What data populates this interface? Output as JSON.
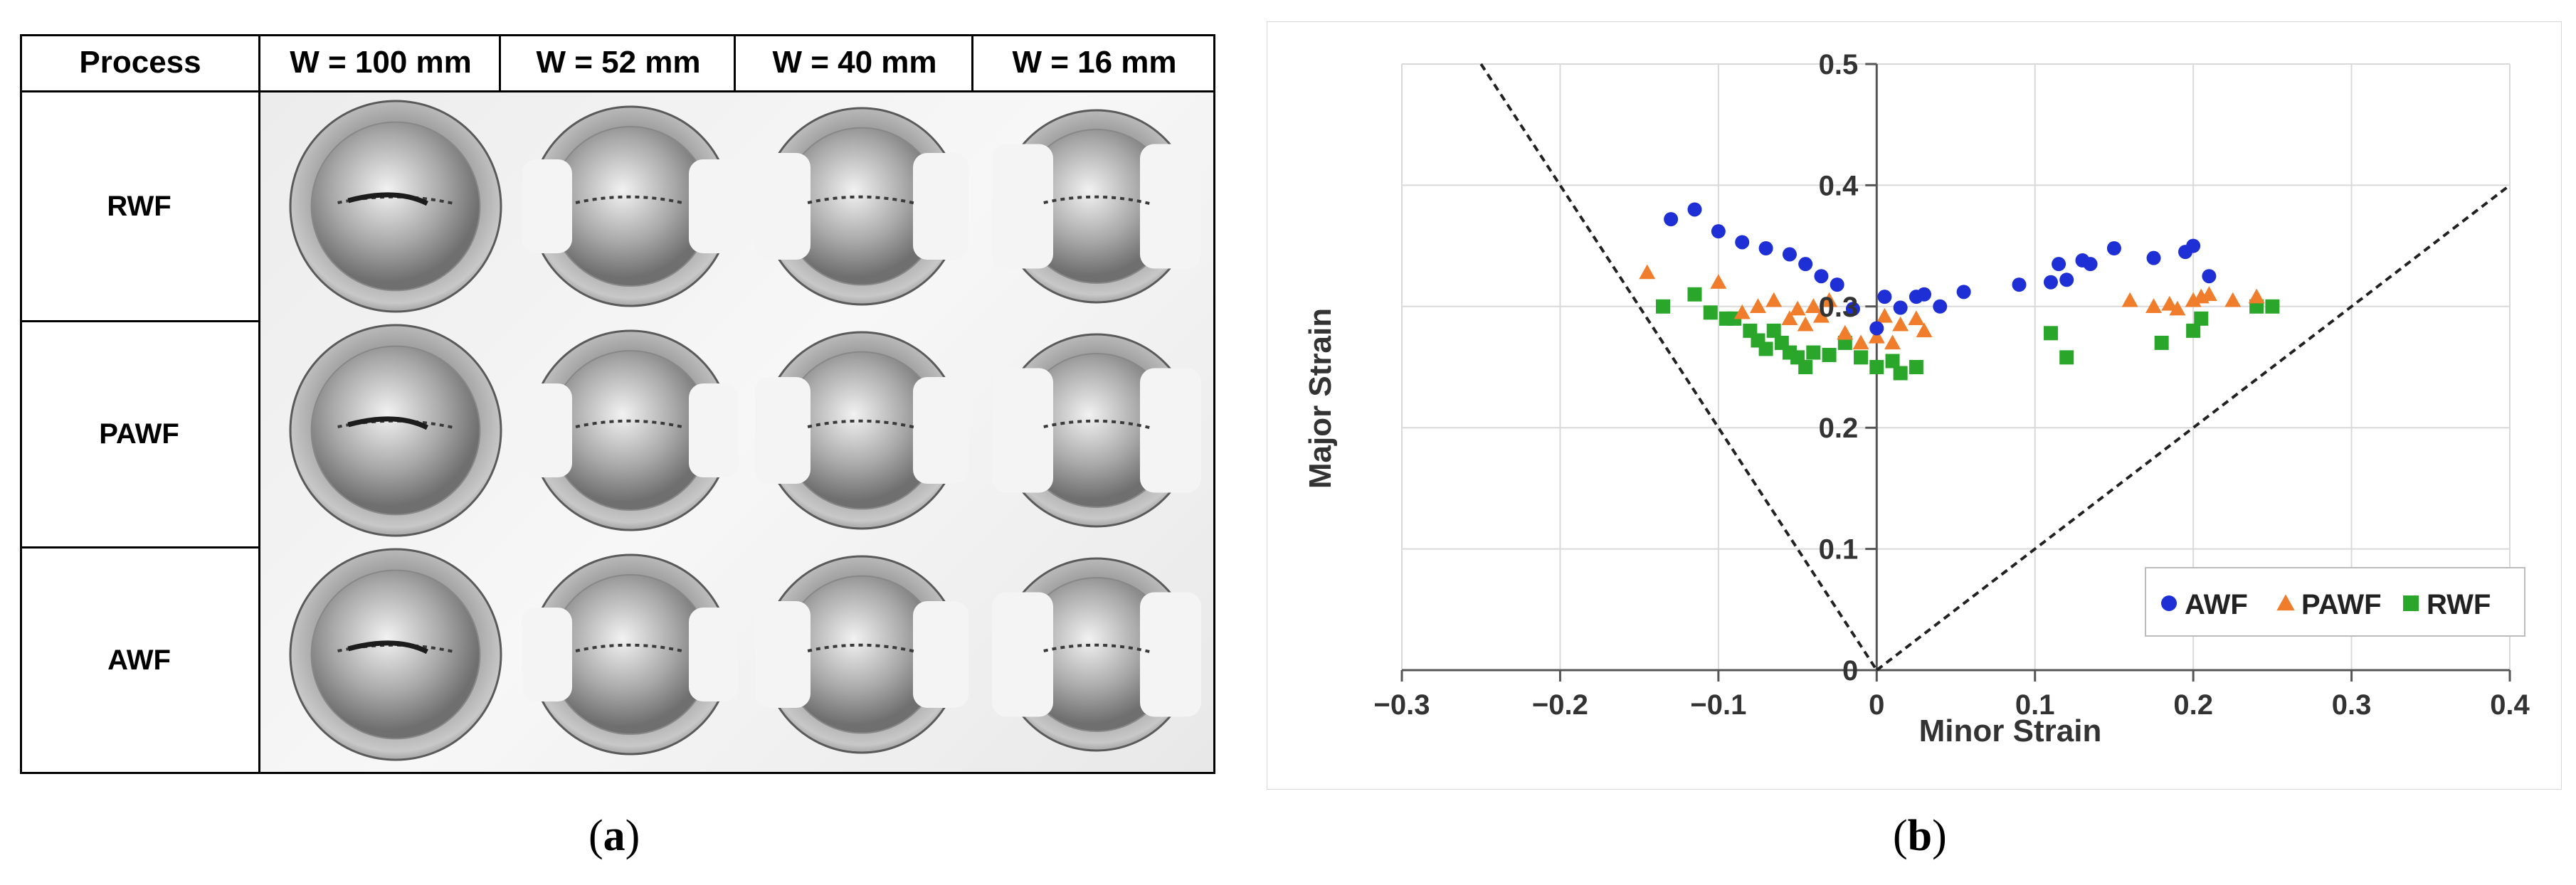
{
  "panel_a": {
    "caption_letter": "a",
    "header": {
      "process": "Process",
      "columns": [
        "W = 100 mm",
        "W = 52 mm",
        "W = 40 mm",
        "W = 16 mm"
      ]
    },
    "rows": [
      "RWF",
      "PAWF",
      "AWF"
    ]
  },
  "panel_b": {
    "caption_letter": "b"
  },
  "chart_data": {
    "type": "scatter",
    "title": "",
    "xlabel": "Minor Strain",
    "ylabel": "Major Strain",
    "xlim": [
      -0.3,
      0.4
    ],
    "ylim": [
      0,
      0.5
    ],
    "xticks": [
      "−0.3",
      "−0.2",
      "−0.1",
      "0",
      "0.1",
      "0.2",
      "0.3",
      "0.4"
    ],
    "xtick_values": [
      -0.3,
      -0.2,
      -0.1,
      0,
      0.1,
      0.2,
      0.3,
      0.4
    ],
    "yticks": [
      "0",
      "0.1",
      "0.2",
      "0.3",
      "0.4",
      "0.5"
    ],
    "ytick_values": [
      0,
      0.1,
      0.2,
      0.3,
      0.4,
      0.5
    ],
    "grid": true,
    "legend_position": "bottom-right",
    "reference_lines": [
      {
        "name": "left-limit-line",
        "x": [
          -0.25,
          0
        ],
        "y": [
          0.5,
          0
        ],
        "style": "dashed"
      },
      {
        "name": "right-limit-line",
        "x": [
          0,
          0.4
        ],
        "y": [
          0,
          0.4
        ],
        "style": "dashed"
      }
    ],
    "series": [
      {
        "name": "AWF",
        "marker": "circle",
        "color": "#1f2fd6",
        "x": [
          -0.13,
          -0.115,
          -0.1,
          -0.085,
          -0.07,
          -0.055,
          -0.045,
          -0.035,
          -0.025,
          -0.015,
          0.0,
          0.005,
          0.015,
          0.025,
          0.03,
          0.04,
          0.055,
          0.09,
          0.11,
          0.115,
          0.12,
          0.13,
          0.135,
          0.15,
          0.175,
          0.195,
          0.2,
          0.21
        ],
        "y": [
          0.372,
          0.38,
          0.362,
          0.353,
          0.348,
          0.343,
          0.335,
          0.325,
          0.318,
          0.298,
          0.282,
          0.308,
          0.299,
          0.308,
          0.31,
          0.3,
          0.312,
          0.318,
          0.32,
          0.335,
          0.322,
          0.338,
          0.335,
          0.348,
          0.34,
          0.345,
          0.35,
          0.325
        ]
      },
      {
        "name": "PAWF",
        "marker": "triangle",
        "color": "#f07d2b",
        "x": [
          -0.145,
          -0.1,
          -0.085,
          -0.075,
          -0.065,
          -0.055,
          -0.05,
          -0.045,
          -0.04,
          -0.035,
          -0.03,
          -0.02,
          -0.01,
          0.0,
          0.005,
          0.01,
          0.015,
          0.025,
          0.03,
          0.16,
          0.175,
          0.185,
          0.19,
          0.2,
          0.205,
          0.21,
          0.225,
          0.24
        ],
        "y": [
          0.328,
          0.32,
          0.295,
          0.3,
          0.305,
          0.29,
          0.298,
          0.285,
          0.3,
          0.292,
          0.305,
          0.278,
          0.27,
          0.275,
          0.292,
          0.27,
          0.285,
          0.29,
          0.28,
          0.305,
          0.3,
          0.302,
          0.298,
          0.305,
          0.308,
          0.31,
          0.305,
          0.308
        ]
      },
      {
        "name": "RWF",
        "marker": "square",
        "color": "#2aa62a",
        "x": [
          -0.135,
          -0.115,
          -0.105,
          -0.095,
          -0.09,
          -0.08,
          -0.075,
          -0.07,
          -0.065,
          -0.06,
          -0.055,
          -0.05,
          -0.045,
          -0.04,
          -0.03,
          -0.02,
          -0.01,
          0.0,
          0.01,
          0.015,
          0.025,
          0.11,
          0.12,
          0.18,
          0.2,
          0.205,
          0.24,
          0.25
        ],
        "y": [
          0.3,
          0.31,
          0.295,
          0.29,
          0.29,
          0.28,
          0.272,
          0.265,
          0.28,
          0.27,
          0.262,
          0.258,
          0.25,
          0.262,
          0.26,
          0.27,
          0.258,
          0.25,
          0.255,
          0.245,
          0.25,
          0.278,
          0.258,
          0.27,
          0.28,
          0.29,
          0.3,
          0.3
        ]
      }
    ]
  }
}
